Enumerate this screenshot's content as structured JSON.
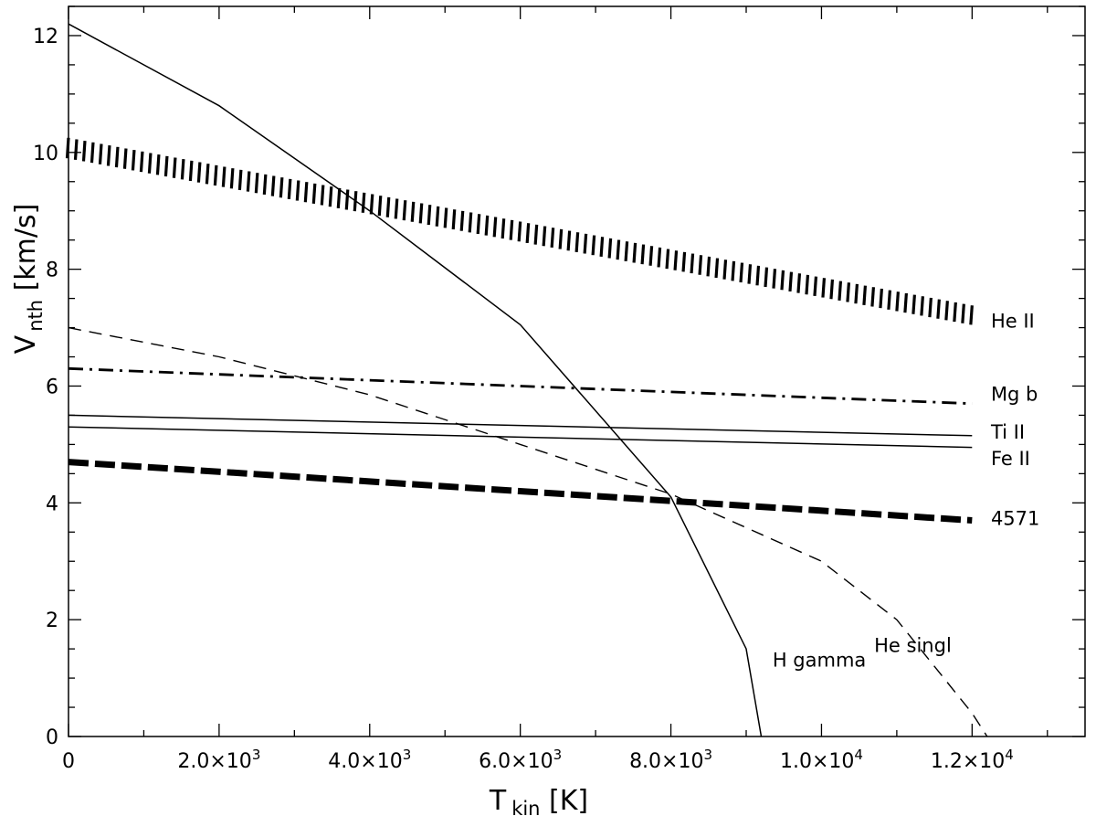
{
  "chart_data": {
    "type": "line",
    "x_label": {
      "main": "T",
      "sub": "kin",
      "unit": " [K]"
    },
    "y_label": {
      "main": "V",
      "sub": "nth",
      "unit": " [km/s]"
    },
    "xlim": [
      0,
      13500
    ],
    "ylim": [
      0,
      12.5
    ],
    "x_ticks": [
      {
        "value": 0,
        "text": "0"
      },
      {
        "value": 2000,
        "text": "2.0×10",
        "exp": "3"
      },
      {
        "value": 4000,
        "text": "4.0×10",
        "exp": "3"
      },
      {
        "value": 6000,
        "text": "6.0×10",
        "exp": "3"
      },
      {
        "value": 8000,
        "text": "8.0×10",
        "exp": "3"
      },
      {
        "value": 10000,
        "text": "1.0×10",
        "exp": "4"
      },
      {
        "value": 12000,
        "text": "1.2×10",
        "exp": "4"
      }
    ],
    "y_ticks": [
      {
        "value": 0,
        "text": "0"
      },
      {
        "value": 2,
        "text": "2"
      },
      {
        "value": 4,
        "text": "4"
      },
      {
        "value": 6,
        "text": "6"
      },
      {
        "value": 8,
        "text": "8"
      },
      {
        "value": 10,
        "text": "10"
      },
      {
        "value": 12,
        "text": "12"
      }
    ],
    "grid": false,
    "series": [
      {
        "name": "He II",
        "style": "hatched-band",
        "x": [
          0,
          12000
        ],
        "y_upper": [
          10.25,
          7.38
        ],
        "y_lower": [
          9.9,
          7.05
        ]
      },
      {
        "name": "Mg b",
        "style": "dash-dot",
        "x": [
          0,
          12000
        ],
        "y": [
          6.3,
          5.7
        ]
      },
      {
        "name": "Ti II",
        "style": "solid",
        "x": [
          0,
          12000
        ],
        "y": [
          5.5,
          5.15
        ]
      },
      {
        "name": "Fe II",
        "style": "solid",
        "x": [
          0,
          12000
        ],
        "y": [
          5.3,
          4.95
        ]
      },
      {
        "name": "4571",
        "style": "thick-dash",
        "x": [
          0,
          12000
        ],
        "y": [
          4.7,
          3.7
        ]
      },
      {
        "name": "H gamma",
        "style": "solid",
        "x": [
          0,
          2000,
          4000,
          6000,
          8000,
          9000,
          9200
        ],
        "y": [
          12.2,
          10.8,
          9.0,
          7.05,
          4.1,
          1.5,
          0
        ]
      },
      {
        "name": "He singl",
        "style": "dashed",
        "x": [
          0,
          2000,
          4000,
          6000,
          8000,
          10000,
          11000,
          12000,
          12200
        ],
        "y": [
          7.0,
          6.5,
          5.85,
          5.0,
          4.15,
          3.0,
          2.0,
          0.4,
          0
        ]
      }
    ],
    "colors": {
      "line": "#000000",
      "background": "#ffffff"
    }
  }
}
